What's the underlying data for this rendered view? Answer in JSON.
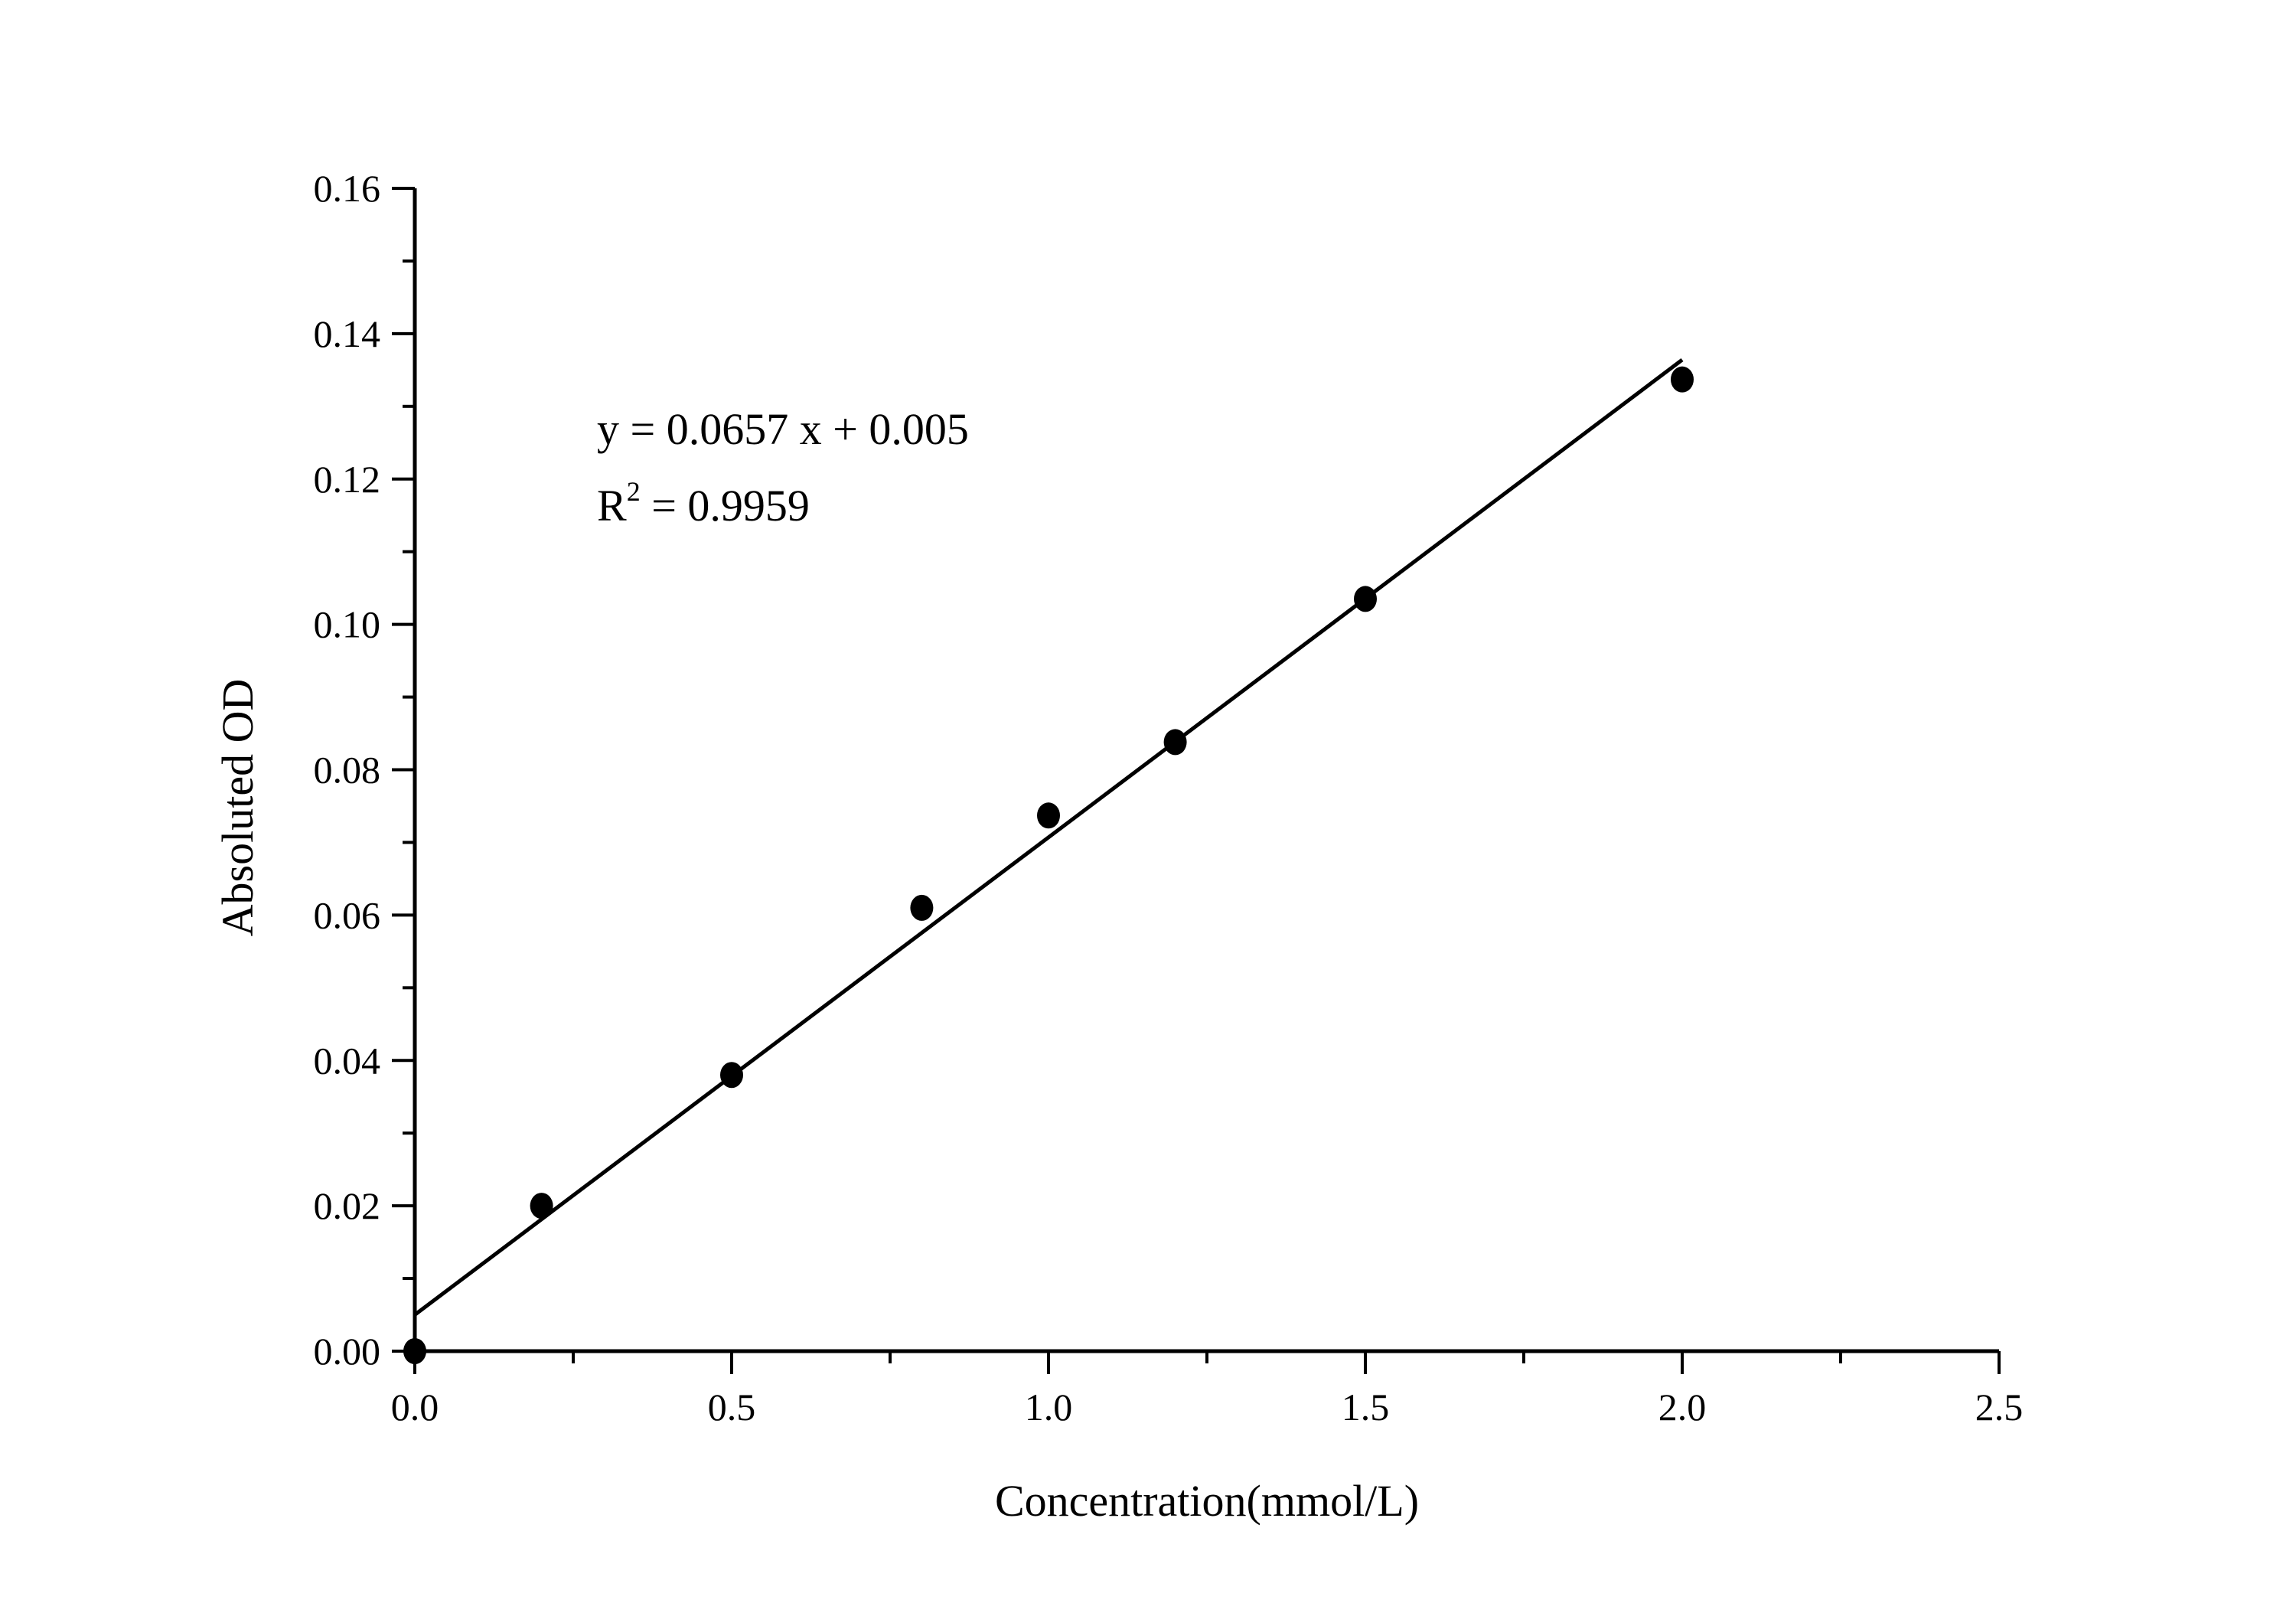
{
  "chart_data": {
    "type": "scatter",
    "xlabel": "Concentration(mmol/L)",
    "ylabel": "Absoluted OD",
    "xlim": [
      0,
      2.5
    ],
    "ylim": [
      0,
      0.16
    ],
    "x_ticks": [
      "0.0",
      "0.5",
      "1.0",
      "1.5",
      "2.0",
      "2.5"
    ],
    "y_ticks": [
      "0.00",
      "0.02",
      "0.04",
      "0.06",
      "0.08",
      "0.10",
      "0.12",
      "0.14",
      "0.16"
    ],
    "grid": false,
    "points": [
      {
        "x": 0.0,
        "y": 0.0
      },
      {
        "x": 0.2,
        "y": 0.02
      },
      {
        "x": 0.5,
        "y": 0.038
      },
      {
        "x": 0.8,
        "y": 0.061
      },
      {
        "x": 1.0,
        "y": 0.0737
      },
      {
        "x": 1.2,
        "y": 0.0838
      },
      {
        "x": 1.5,
        "y": 0.1035
      },
      {
        "x": 2.0,
        "y": 0.1337
      }
    ],
    "fit": {
      "slope": 0.0657,
      "intercept": 0.005,
      "x_range": [
        0,
        2.0
      ]
    },
    "annotations": {
      "equation": "y = 0.0657 x + 0.005",
      "r2_prefix": "R",
      "r2_sup": "2",
      "r2_value": " = 0.9959"
    },
    "colors": {
      "marker": "#000000",
      "line": "#000000"
    }
  }
}
